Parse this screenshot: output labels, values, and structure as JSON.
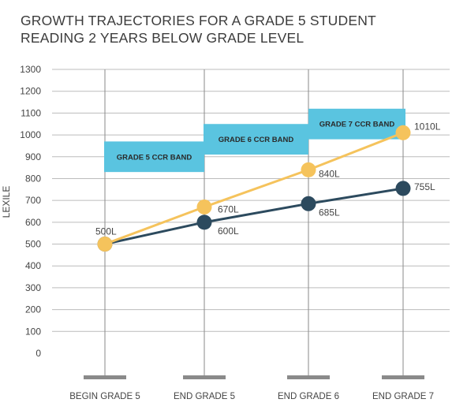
{
  "chart_data": {
    "type": "line",
    "title": [
      "GROWTH TRAJECTORIES FOR A GRADE 5 STUDENT",
      "READING 2 YEARS BELOW GRADE LEVEL"
    ],
    "ylabel": "LEXILE",
    "xlabel": "",
    "ylim": [
      0,
      1300
    ],
    "yticks": [
      "0",
      "100",
      "200",
      "300",
      "400",
      "500",
      "600",
      "700",
      "800",
      "900",
      "1000",
      "1100",
      "1200",
      "1300"
    ],
    "categories": [
      "BEGIN GRADE 5",
      "END GRADE 5",
      "END GRADE 6",
      "END GRADE 7"
    ],
    "grid": "horizontal",
    "series": [
      {
        "color": "#f5c35c",
        "values": [
          500,
          670,
          840,
          1010
        ],
        "labels": [
          "500L",
          "670L",
          "840L",
          "1010L"
        ]
      },
      {
        "color": "#2c4a5e",
        "values": [
          500,
          600,
          685,
          755
        ],
        "labels": [
          "",
          "600L",
          "685L",
          "755L"
        ]
      }
    ],
    "bands": [
      {
        "label": "GRADE 5 CCR BAND",
        "from": 830,
        "to": 970
      },
      {
        "label": "GRADE 6 CCR BAND",
        "from": 910,
        "to": 1050
      },
      {
        "label": "GRADE 7 CCR BAND",
        "from": 980,
        "to": 1120
      }
    ],
    "colors": {
      "band": "#5ac4e0",
      "grid": "#bcbcbc",
      "axis": "#8a8a8a",
      "text": "#444444"
    }
  }
}
